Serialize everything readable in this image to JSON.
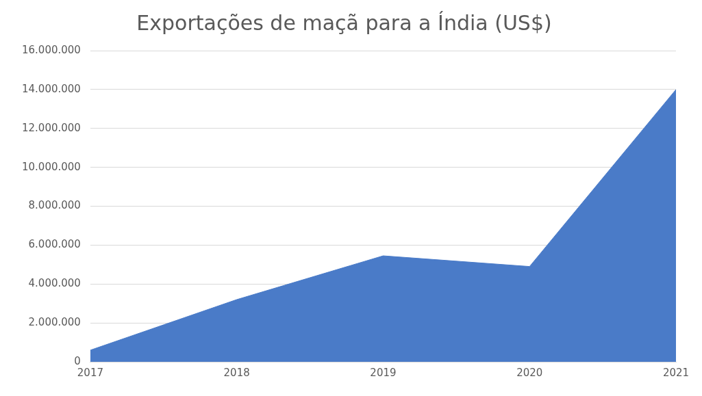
{
  "chart_data": {
    "type": "area",
    "title": "Exportações de maçã para a Índia (US$)",
    "categories": [
      "2017",
      "2018",
      "2019",
      "2020",
      "2021"
    ],
    "series": [
      {
        "color": "#4a7bc8",
        "values": [
          600000,
          3200000,
          5450000,
          4900000,
          14000000
        ]
      }
    ],
    "ylim": [
      0,
      16000000
    ],
    "yticks": [
      {
        "value": 0,
        "label": "0"
      },
      {
        "value": 2000000,
        "label": "2.000.000"
      },
      {
        "value": 4000000,
        "label": "4.000.000"
      },
      {
        "value": 6000000,
        "label": "6.000.000"
      },
      {
        "value": 8000000,
        "label": "8.000.000"
      },
      {
        "value": 10000000,
        "label": "10.000.000"
      },
      {
        "value": 12000000,
        "label": "12.000.000"
      },
      {
        "value": 14000000,
        "label": "14.000.000"
      },
      {
        "value": 16000000,
        "label": "16.000.000"
      }
    ],
    "grid": "y",
    "legend": false
  }
}
